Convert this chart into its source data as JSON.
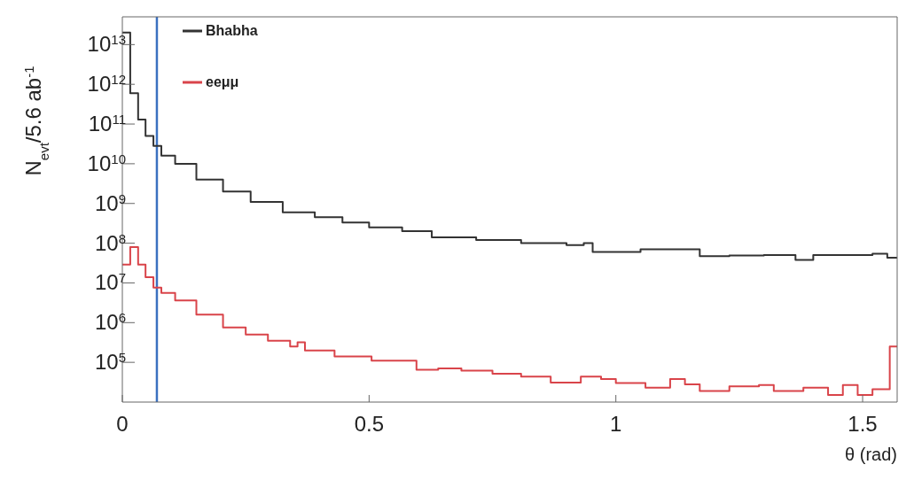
{
  "chart_data": {
    "type": "step",
    "xlabel": "θ (rad)",
    "ylabel": "N$_{evt}$/5.6 ab$^{-1}$",
    "xlim": [
      0,
      1.57
    ],
    "xticks": [
      0,
      0.5,
      1,
      1.5
    ],
    "ylim": [
      10000,
      50000000000000
    ],
    "log": "y",
    "yticks": [
      {
        "value": 100000,
        "label": "10$^{5}$"
      },
      {
        "value": 1000000,
        "label": "10$^{6}$"
      },
      {
        "value": 10000000,
        "label": "10$^{7}$"
      },
      {
        "value": 100000000,
        "label": "10$^{8}$"
      },
      {
        "value": 1000000000,
        "label": "10$^{9}$"
      },
      {
        "value": 10000000000,
        "label": "10$^{10}$"
      },
      {
        "value": 100000000000,
        "label": "10$^{11}$"
      },
      {
        "value": 1000000000000,
        "label": "10$^{12}$"
      },
      {
        "value": 10000000000000,
        "label": "10$^{13}$"
      }
    ],
    "grid": false,
    "legend": "top left",
    "marker": "none",
    "line_style": "solid",
    "ref_lines": [
      {
        "axis": "x",
        "value": 0.07,
        "color": "#3a70c0"
      }
    ],
    "series": [
      {
        "name": "Bhabha",
        "color": "#333333",
        "x": [
          0,
          0.016,
          0.032,
          0.047,
          0.063,
          0.079,
          0.107,
          0.15,
          0.204,
          0.26,
          0.325,
          0.39,
          0.446,
          0.5,
          0.567,
          0.627,
          0.717,
          0.808,
          0.9,
          0.935,
          0.953,
          1.05,
          1.17,
          1.23,
          1.3,
          1.364,
          1.4,
          1.52,
          1.55,
          1.57
        ],
        "values": [
          20000000000000,
          600000000000,
          130000000000,
          50000000000,
          28000000000,
          16000000000,
          10000000000,
          4000000000,
          2000000000,
          1100000000,
          600000000,
          450000000,
          330000000,
          250000000,
          200000000,
          140000000,
          120000000,
          100000000,
          90000000,
          100000000,
          60000000,
          70000000,
          47000000,
          49000000,
          50000000,
          38000000,
          50000000,
          54000000,
          43000000,
          43000000
        ]
      },
      {
        "name": "eeμμ",
        "color": "#d9444a",
        "x": [
          0,
          0.016,
          0.032,
          0.047,
          0.063,
          0.079,
          0.107,
          0.15,
          0.204,
          0.25,
          0.295,
          0.34,
          0.355,
          0.37,
          0.43,
          0.505,
          0.596,
          0.64,
          0.687,
          0.75,
          0.808,
          0.868,
          0.929,
          0.97,
          1.0,
          1.06,
          1.11,
          1.14,
          1.17,
          1.23,
          1.29,
          1.32,
          1.38,
          1.43,
          1.46,
          1.49,
          1.52,
          1.555,
          1.57
        ],
        "values": [
          29000000,
          80000000,
          29000000,
          14000000,
          7600000,
          5600000,
          3600000,
          1600000,
          760000,
          500000,
          350000,
          250000,
          320000,
          200000,
          140000,
          110000,
          65000,
          70000,
          62000,
          52000,
          44000,
          31000,
          44000,
          38000,
          30000,
          23000,
          38000,
          28000,
          19000,
          25000,
          27000,
          19000,
          23000,
          15000,
          27000,
          15000,
          21000,
          250000,
          250000
        ]
      }
    ]
  }
}
